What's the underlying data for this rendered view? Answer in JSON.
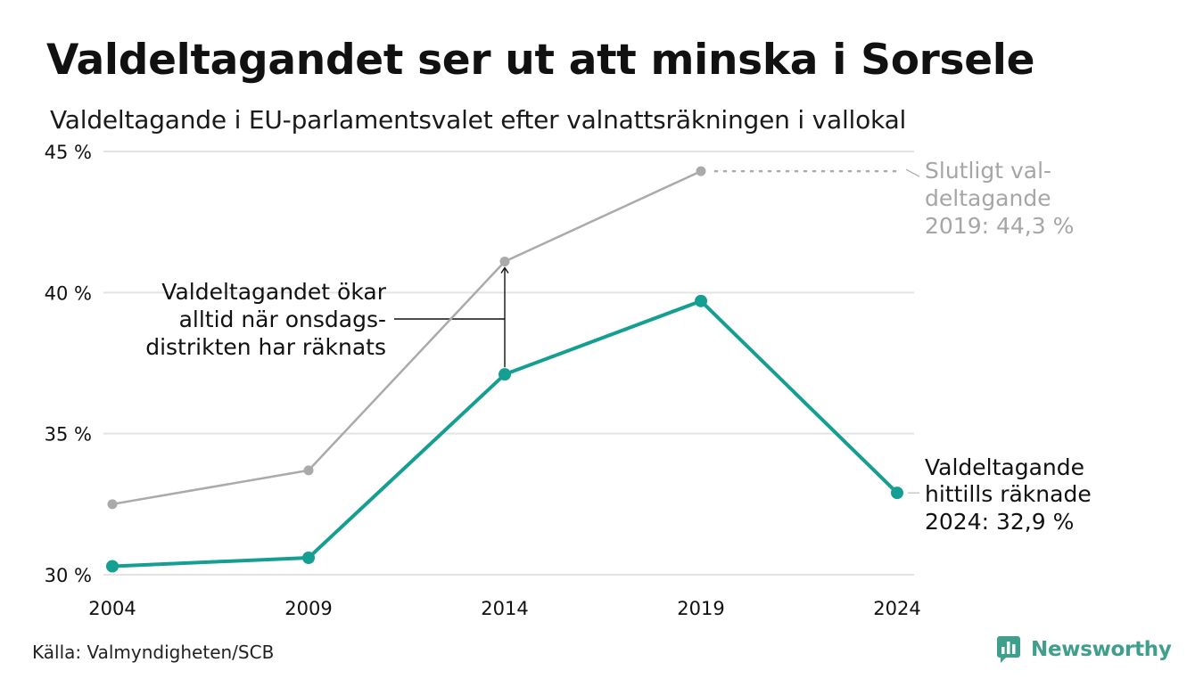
{
  "title": "Valdeltagandet ser ut att minska i Sorsele",
  "subtitle": "Valdeltagande i EU-parlamentsvalet efter valnattsräkningen i vallokal",
  "source": "Källa: Valmyndigheten/SCB",
  "brand": "Newsworthy",
  "colors": {
    "final_series": "#aaaaaa",
    "counted_series": "#159e92",
    "gridline": "#e3e3e3",
    "brand": "#3f9e8c"
  },
  "chart_data": {
    "type": "line",
    "title": "Valdeltagandet ser ut att minska i Sorsele",
    "subtitle": "Valdeltagande i EU-parlamentsvalet efter valnattsräkningen i vallokal",
    "xlabel": "",
    "ylabel": "",
    "x": [
      2004,
      2009,
      2014,
      2019,
      2024
    ],
    "x_tick_labels": [
      "2004",
      "2009",
      "2014",
      "2019",
      "2024"
    ],
    "ylim": [
      30,
      45
    ],
    "y_ticks": [
      30,
      35,
      40,
      45
    ],
    "y_tick_labels": [
      "30 %",
      "35 %",
      "40 %",
      "45 %"
    ],
    "grid": true,
    "legend": "none",
    "series": [
      {
        "key": "final",
        "color": "#aaaaaa",
        "values": [
          32.5,
          33.7,
          41.1,
          44.3,
          null
        ]
      },
      {
        "key": "counted",
        "color": "#159e92",
        "values": [
          30.3,
          30.6,
          37.1,
          39.7,
          32.9
        ]
      }
    ],
    "annotations": {
      "final_label": [
        "Slutligt val-",
        "deltagande",
        "2019: 44,3 %"
      ],
      "counted_label": [
        "Valdeltagande",
        "hittills räknade",
        "2024: 32,9 %"
      ],
      "increase_note": [
        "Valdeltagandet ökar",
        "alltid när onsdags-",
        "distrikten har räknats"
      ]
    }
  }
}
